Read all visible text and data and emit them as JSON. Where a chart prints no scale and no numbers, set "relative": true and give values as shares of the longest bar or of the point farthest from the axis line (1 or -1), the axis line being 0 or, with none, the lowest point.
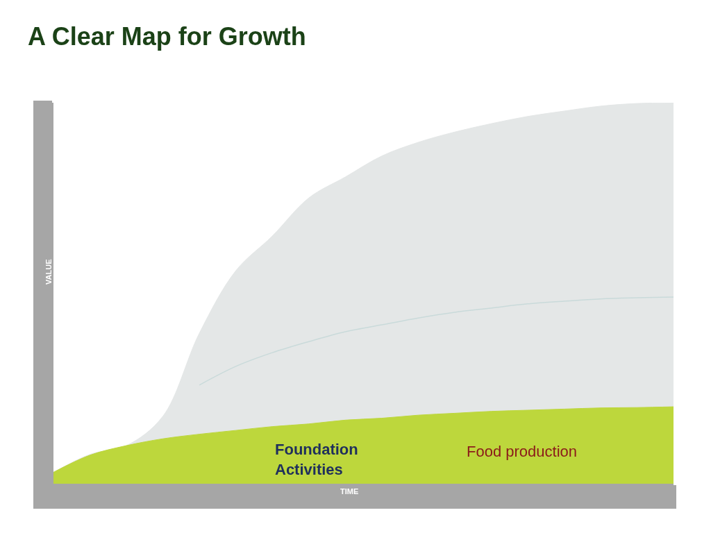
{
  "chart_data": {
    "type": "area",
    "relative": true,
    "title": "A Clear Map for Growth",
    "xlabel": "TIME",
    "ylabel": "VALUE",
    "categories": [
      null,
      null,
      null,
      null,
      null,
      null,
      null,
      null,
      null,
      null,
      null,
      null,
      null,
      null,
      null,
      null,
      null,
      null
    ],
    "series": [
      {
        "color": "#e4e7e7",
        "values": [
          0.03,
          0.077,
          0.1,
          0.177,
          0.395,
          0.559,
          0.65,
          0.75,
          0.805,
          0.86,
          0.896,
          0.923,
          0.945,
          0.964,
          0.978,
          0.991,
          0.998,
          1
        ]
      },
      {
        "color": "#bdd73c",
        "values": [
          0.03,
          0.075,
          0.1,
          0.118,
          0.13,
          0.14,
          0.15,
          0.157,
          0.167,
          0.172,
          0.18,
          0.185,
          0.19,
          0.193,
          0.196,
          0.199,
          0.2,
          0.202
        ]
      },
      {
        "type": "line",
        "color": "#c9dada",
        "values": [
          null,
          null,
          null,
          null,
          0.259,
          0.308,
          0.344,
          0.373,
          0.399,
          0.417,
          0.435,
          0.45,
          0.461,
          0.472,
          0.479,
          0.485,
          0.488,
          0.49
        ]
      }
    ],
    "annotations": [
      "Foundation\nActivities",
      "Food production"
    ]
  }
}
